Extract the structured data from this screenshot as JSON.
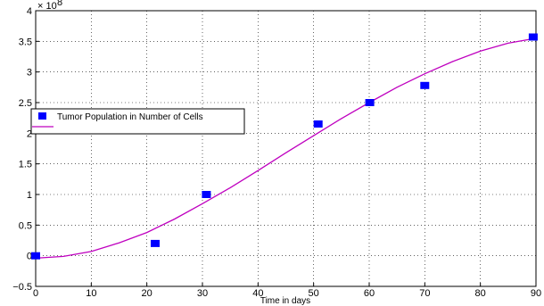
{
  "chart_data": {
    "type": "scatter",
    "title": "",
    "xlabel": "Time in days",
    "ylabel": "",
    "xlim": [
      0,
      90
    ],
    "ylim": [
      -0.5,
      4
    ],
    "y_scale_label": "× 10",
    "y_scale_exponent": "8",
    "xticks": [
      "0",
      "10",
      "20",
      "30",
      "40",
      "50",
      "60",
      "70",
      "80",
      "90"
    ],
    "yticks": [
      "−0.5",
      "0",
      "0.5",
      "1",
      "1.5",
      "2",
      "2.5",
      "3",
      "3.5",
      "4"
    ],
    "grid": true,
    "legend_position": "center-left",
    "series": [
      {
        "name": "Tumor Population in Number of Cells",
        "kind": "marker",
        "color": "#0000ff",
        "x": [
          0,
          21.5,
          30.7,
          50.8,
          60.1,
          70,
          89.5
        ],
        "y": [
          0.0,
          0.2,
          1.0,
          2.15,
          2.5,
          2.78,
          3.57
        ]
      },
      {
        "name": "",
        "kind": "line",
        "color": "#bf00bf",
        "x": [
          0,
          5,
          10,
          15,
          20,
          25,
          30,
          35,
          40,
          45,
          50,
          55,
          60,
          65,
          70,
          75,
          80,
          85,
          90
        ],
        "y": [
          -0.04,
          -0.01,
          0.07,
          0.21,
          0.38,
          0.6,
          0.85,
          1.11,
          1.39,
          1.68,
          1.96,
          2.24,
          2.5,
          2.75,
          2.97,
          3.17,
          3.34,
          3.47,
          3.55
        ]
      }
    ]
  }
}
